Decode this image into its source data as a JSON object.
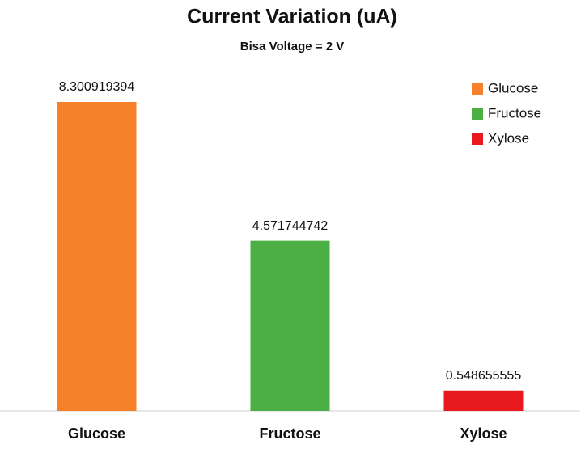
{
  "chart_data": {
    "type": "bar",
    "title": "Current Variation (uA)",
    "subtitle": "Bisa Voltage = 2 V",
    "categories": [
      "Glucose",
      "Fructose",
      "Xylose"
    ],
    "values": [
      8.300919394,
      4.571744742,
      0.548655555
    ],
    "colors": [
      "#f5822a",
      "#4caf45",
      "#e8191c"
    ],
    "legend": "top-right"
  }
}
